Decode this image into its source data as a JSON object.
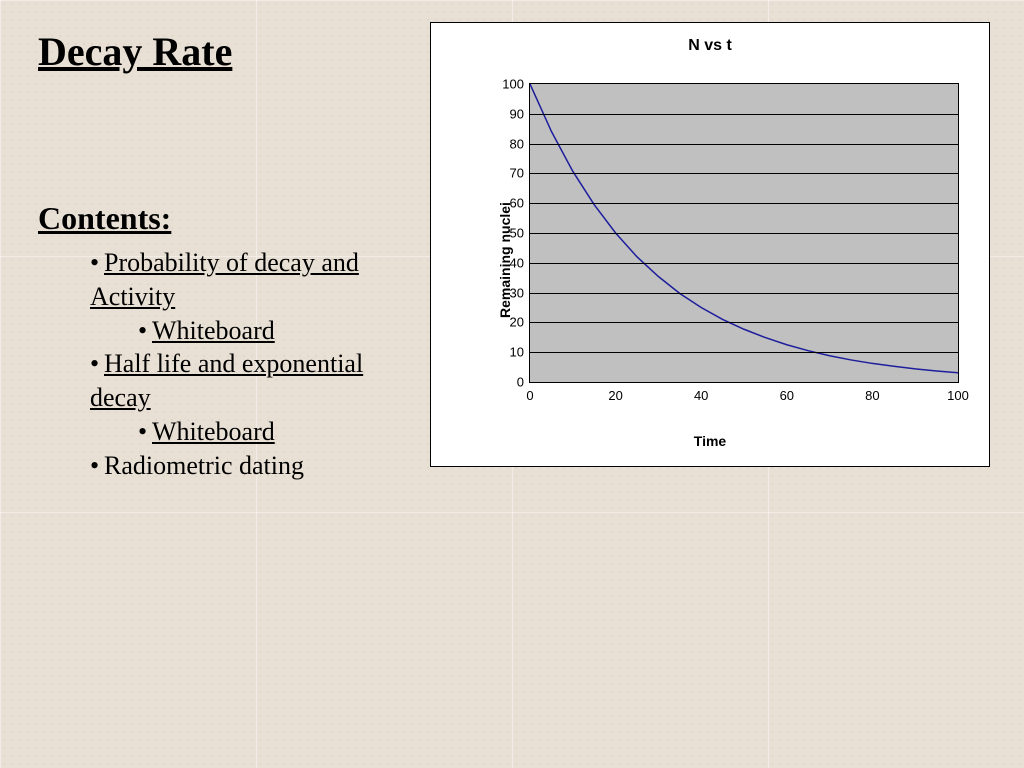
{
  "slide": {
    "title": "Decay Rate",
    "contents_heading": "Contents:",
    "items": [
      {
        "level": 1,
        "text": "Probability of decay and Activity",
        "underline": true
      },
      {
        "level": 2,
        "text": "Whiteboard",
        "underline": true
      },
      {
        "level": 1,
        "text": "Half life and exponential decay",
        "underline": true
      },
      {
        "level": 2,
        "text": "Whiteboard",
        "underline": true
      },
      {
        "level": 1,
        "text": "Radiometric dating",
        "underline": false
      }
    ]
  },
  "chart": {
    "type": "line",
    "title": "N vs t",
    "xlabel": "Time",
    "ylabel": "Remaining nuclei",
    "xlim": [
      0,
      100
    ],
    "ylim": [
      0,
      100
    ],
    "xticks": [
      0,
      20,
      40,
      60,
      80,
      100
    ],
    "yticks": [
      0,
      10,
      20,
      30,
      40,
      50,
      60,
      70,
      80,
      90,
      100
    ],
    "grid_color": "#000000",
    "plot_bg": "#c0c0c0",
    "line_color": "#1e1e9c",
    "line_width": 1.5,
    "panel_bg": "#ffffff",
    "title_fontsize": 16,
    "label_fontsize": 14,
    "tick_fontsize": 13,
    "x": [
      0,
      5,
      10,
      15,
      20,
      25,
      30,
      35,
      40,
      45,
      50,
      55,
      60,
      65,
      70,
      75,
      80,
      85,
      90,
      95,
      100
    ],
    "y": [
      100,
      84.1,
      70.7,
      59.5,
      50,
      42,
      35.4,
      29.7,
      25,
      21,
      17.7,
      14.9,
      12.5,
      10.5,
      8.8,
      7.4,
      6.25,
      5.3,
      4.4,
      3.7,
      3.1
    ]
  }
}
